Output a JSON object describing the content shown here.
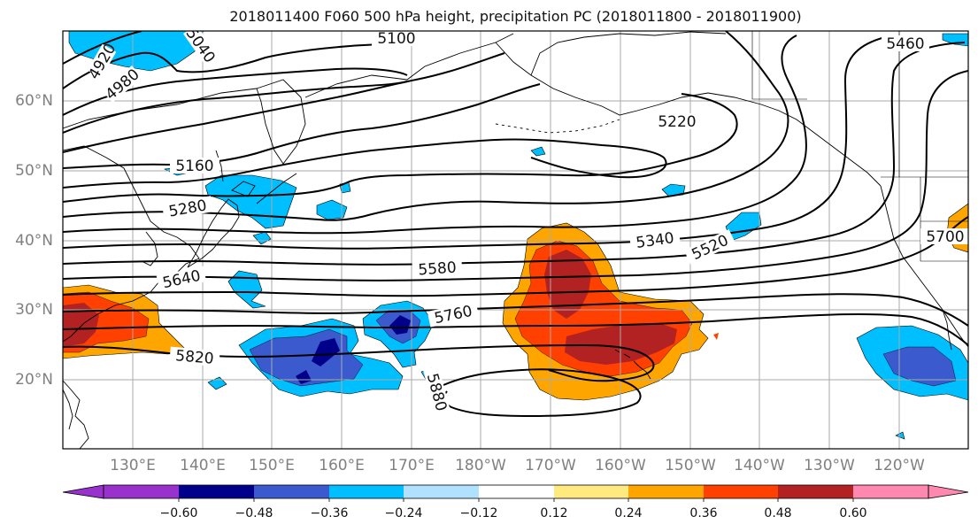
{
  "title": "2018011400 F060 500 hPa height, precipitation PC (2018011800 - 2018011900)",
  "latitude_labels": [
    "60°N",
    "50°N",
    "40°N",
    "30°N",
    "20°N"
  ],
  "longitude_labels": [
    "130°E",
    "140°E",
    "150°E",
    "160°E",
    "170°E",
    "180°W",
    "170°W",
    "160°W",
    "150°W",
    "140°W",
    "130°W",
    "120°W"
  ],
  "contour_labels": [
    "4920",
    "4980",
    "5040",
    "5100",
    "5160",
    "5280",
    "5340",
    "5520",
    "5580",
    "5640",
    "5700",
    "5760",
    "5820",
    "5880",
    "5460",
    "5220"
  ],
  "colorbar": {
    "tick_labels": [
      "−0.60",
      "−0.48",
      "−0.36",
      "−0.24",
      "−0.12",
      "0.12",
      "0.24",
      "0.36",
      "0.48",
      "0.60"
    ],
    "colors": [
      "#9932cc",
      "#00008b",
      "#3a5acd",
      "#00bfff",
      "#b0e2ff",
      "#ffffff",
      "#ffea80",
      "#ffa500",
      "#ff4000",
      "#b22222",
      "#ff88b0"
    ]
  },
  "colors": {
    "negative_light": "#00bfff",
    "negative_mid": "#3a5acd",
    "negative_dark": "#00008b",
    "positive_light": "#ffa500",
    "positive_mid": "#ff4000",
    "positive_dark": "#b22222",
    "positive_pale": "#ffea80"
  }
}
